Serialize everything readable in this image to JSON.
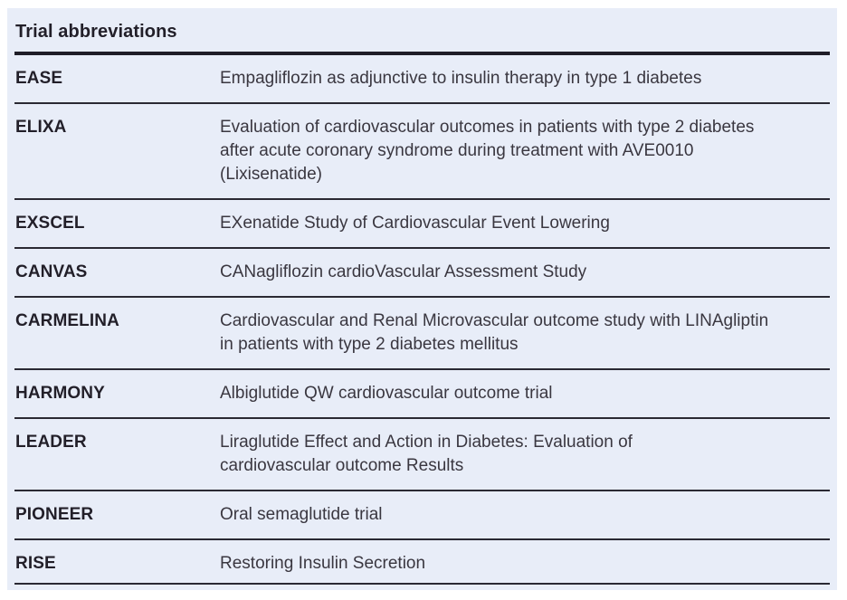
{
  "table": {
    "title": "Trial abbreviations",
    "rows": [
      {
        "abbr": "EASE",
        "definition": "Empagliflozin as adjunctive to insulin therapy in type 1 diabetes"
      },
      {
        "abbr": "ELIXA",
        "definition": "Evaluation of cardiovascular outcomes in patients with type 2 diabetes\nafter acute coronary syndrome during treatment with AVE0010\n(Lixisenatide)"
      },
      {
        "abbr": "EXSCEL",
        "definition": "EXenatide Study of Cardiovascular Event Lowering"
      },
      {
        "abbr": "CANVAS",
        "definition": "CANagliflozin cardioVascular Assessment Study"
      },
      {
        "abbr": "CARMELINA",
        "definition": "Cardiovascular and Renal Microvascular outcome study with LINAgliptin\nin patients with type 2 diabetes mellitus"
      },
      {
        "abbr": "HARMONY",
        "definition": "Albiglutide QW cardiovascular outcome trial"
      },
      {
        "abbr": "LEADER",
        "definition": "Liraglutide Effect and Action in Diabetes: Evaluation of\ncardiovascular outcome Results"
      },
      {
        "abbr": "PIONEER",
        "definition": "Oral semaglutide trial"
      },
      {
        "abbr": "RISE",
        "definition": "Restoring Insulin Secretion"
      }
    ]
  },
  "colors": {
    "panel_background": "#e8edf8",
    "heading_text": "#221f29",
    "body_text": "#3a3740",
    "heading_rule": "#1f1d27",
    "row_rule": "#2a2933"
  }
}
